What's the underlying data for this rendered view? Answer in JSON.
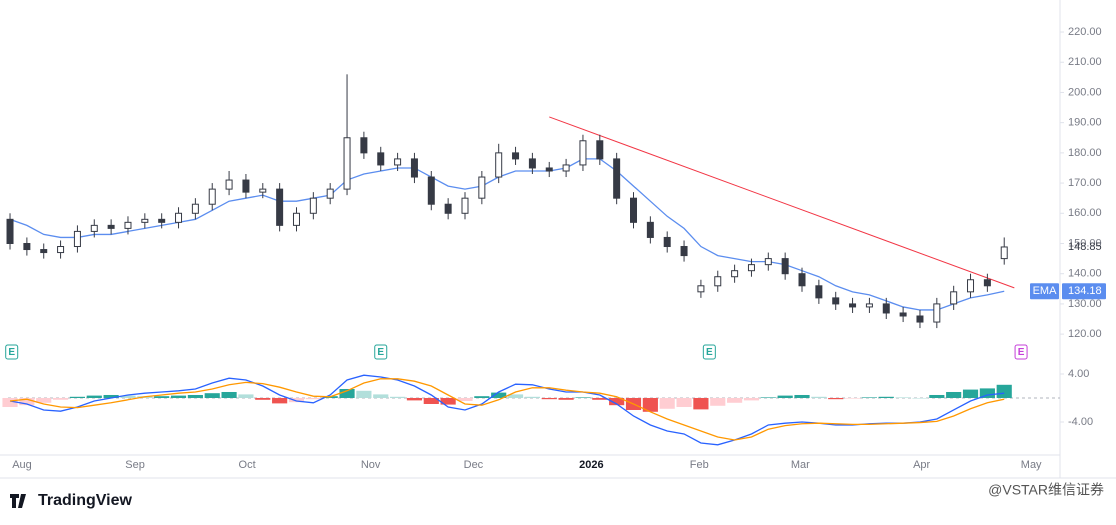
{
  "chart_data": {
    "type": "candlestick",
    "xlim": [
      -0.12,
      62.31
    ],
    "xticks": [
      {
        "value": 0.71,
        "label": "Aug"
      },
      {
        "value": 7.42,
        "label": "Sep"
      },
      {
        "value": 14.07,
        "label": "Oct"
      },
      {
        "value": 21.4,
        "label": "Nov"
      },
      {
        "value": 27.5,
        "label": "Dec"
      },
      {
        "value": 34.5,
        "label": "2026"
      },
      {
        "value": 40.9,
        "label": "Feb"
      },
      {
        "value": 46.9,
        "label": "Mar"
      },
      {
        "value": 54.1,
        "label": "Apr"
      },
      {
        "value": 60.6,
        "label": "May"
      }
    ],
    "ylim": [
      116.4,
      230.6
    ],
    "yticks": [
      {
        "value": 120,
        "label": "120.00"
      },
      {
        "value": 130,
        "label": "130.00"
      },
      {
        "value": 140,
        "label": "140.00"
      },
      {
        "value": 150,
        "label": "150.00"
      },
      {
        "value": 160,
        "label": "160.00"
      },
      {
        "value": 170,
        "label": "170.00"
      },
      {
        "value": 180,
        "label": "180.00"
      },
      {
        "value": 190,
        "label": "190.00"
      },
      {
        "value": 200,
        "label": "200.00"
      },
      {
        "value": 210,
        "label": "210.00"
      },
      {
        "value": 220,
        "label": "220.00"
      }
    ],
    "y2lim": [
      -8.67,
      8
    ],
    "y2ticks": [
      {
        "value": 4,
        "label": "4.00"
      },
      {
        "value": -4,
        "label": "-4.00"
      }
    ],
    "grid": false,
    "up_color": "#ffffff",
    "down_color": "#363a45",
    "open": [
      158,
      150,
      148,
      147,
      149,
      154,
      156,
      155,
      157,
      158,
      157,
      160,
      163,
      168,
      171,
      167,
      168,
      156,
      160,
      165,
      168,
      185,
      180,
      176,
      178,
      172,
      163,
      160,
      165,
      172,
      180,
      178,
      175,
      174,
      176,
      184,
      178,
      165,
      157,
      152,
      149,
      134,
      136,
      139,
      141,
      143,
      145,
      140,
      136,
      132,
      130,
      129,
      130,
      127,
      126,
      124,
      130,
      134,
      138,
      145
    ],
    "high": [
      160,
      152,
      150,
      151,
      156,
      158,
      158,
      159,
      160,
      160,
      162,
      165,
      170,
      174,
      173,
      170,
      170,
      162,
      167,
      170,
      206,
      187,
      182,
      180,
      180,
      174,
      165,
      167,
      174,
      183,
      182,
      180,
      177,
      178,
      186,
      186,
      180,
      167,
      159,
      154,
      151,
      138,
      141,
      143,
      145,
      147,
      147,
      142,
      138,
      134,
      132,
      132,
      132,
      129,
      128,
      132,
      136,
      140,
      140,
      152
    ],
    "low": [
      148,
      146,
      145,
      145,
      147,
      152,
      153,
      153,
      155,
      155,
      155,
      158,
      161,
      166,
      165,
      165,
      154,
      154,
      158,
      163,
      166,
      178,
      174,
      174,
      170,
      161,
      158,
      158,
      163,
      170,
      176,
      173,
      172,
      172,
      174,
      176,
      163,
      155,
      150,
      147,
      144,
      132,
      134,
      137,
      139,
      141,
      138,
      134,
      130,
      128,
      127,
      127,
      125,
      124,
      122,
      122,
      128,
      132,
      134,
      143
    ],
    "close": [
      150,
      148,
      147,
      149,
      154,
      156,
      155,
      157,
      158,
      157,
      160,
      163,
      168,
      171,
      167,
      168,
      156,
      160,
      165,
      168,
      185,
      180,
      176,
      178,
      172,
      163,
      160,
      165,
      172,
      180,
      178,
      175,
      174,
      176,
      184,
      178,
      165,
      157,
      152,
      149,
      146,
      136,
      139,
      141,
      143,
      145,
      140,
      136,
      132,
      130,
      129,
      130,
      127,
      126,
      124,
      130,
      134,
      138,
      136,
      148.85
    ],
    "series": [
      {
        "name": "EMA",
        "color": "#5b8def",
        "axis": "y",
        "values": [
          158,
          156,
          153,
          152,
          152,
          153,
          153,
          154,
          155,
          156,
          157,
          158,
          161,
          164,
          165,
          166,
          164,
          164,
          165,
          166,
          171,
          173,
          174,
          175,
          175,
          172,
          169,
          168,
          169,
          172,
          174,
          174,
          174,
          175,
          178,
          178,
          174,
          169,
          164,
          159,
          155,
          149,
          146,
          145,
          144,
          144,
          143,
          141,
          139,
          136,
          134,
          133,
          131,
          129,
          128,
          128,
          130,
          132,
          133,
          134.18
        ]
      },
      {
        "color": "#2962ff",
        "axis": "y2",
        "values": [
          -0.5,
          -1,
          -2,
          -2.2,
          -1.5,
          -0.5,
          0,
          0.5,
          0.8,
          1,
          1.2,
          1.5,
          2.5,
          3.3,
          3,
          2,
          0.5,
          -0.5,
          -0.8,
          0.5,
          3,
          3.8,
          3.5,
          3,
          2,
          0.5,
          -1.5,
          -2,
          -1,
          1,
          2.3,
          2.2,
          1.5,
          1,
          1,
          0.5,
          -1,
          -3,
          -4.5,
          -5.5,
          -6,
          -7.5,
          -7.8,
          -7,
          -6,
          -4.5,
          -4.2,
          -4,
          -4.2,
          -4.5,
          -4.5,
          -4.3,
          -4.2,
          -4.2,
          -4,
          -3.5,
          -2,
          -0.5,
          0.5,
          0.8
        ]
      },
      {
        "color": "#ff9800",
        "axis": "y2",
        "values": [
          -0.5,
          -0.2,
          -1,
          -1.5,
          -1.6,
          -1.2,
          -0.8,
          -0.3,
          0.2,
          0.5,
          0.8,
          1,
          1.5,
          2.2,
          2.6,
          2.4,
          1.8,
          1,
          0.3,
          0.2,
          1.2,
          2.5,
          3.2,
          3.2,
          2.8,
          2,
          0.5,
          -1,
          -1.2,
          -0.3,
          1,
          1.7,
          1.7,
          1.3,
          1,
          0.8,
          0.2,
          -1,
          -2.3,
          -3.5,
          -4.5,
          -5.5,
          -6.5,
          -7,
          -6.5,
          -5.2,
          -4.6,
          -4.3,
          -4.2,
          -4.3,
          -4.4,
          -4.4,
          -4.3,
          -4.2,
          -4.1,
          -3.9,
          -3,
          -1.8,
          -0.8,
          -0.2
        ]
      }
    ],
    "histogram": {
      "colors": [
        "#26a69a",
        "#b2dfdb",
        "#ffcdd2",
        "#ef5350"
      ],
      "values": [
        -1.5,
        -1.2,
        -0.8,
        -0.3,
        0.2,
        0.4,
        0.5,
        0.4,
        0.3,
        0.3,
        0.4,
        0.5,
        0.8,
        1.0,
        0.6,
        -0.3,
        -0.9,
        -0.7,
        -0.2,
        0.3,
        1.5,
        1.2,
        0.6,
        0.2,
        -0.4,
        -1.0,
        -1.1,
        -0.5,
        0.3,
        0.9,
        0.6,
        0.2,
        -0.2,
        -0.3,
        0.1,
        -0.3,
        -1.2,
        -2.0,
        -2.3,
        -1.8,
        -1.5,
        -1.9,
        -1.3,
        -0.8,
        -0.4,
        0.1,
        0.4,
        0.5,
        0.2,
        -0.2,
        -0.1,
        0.1,
        0.2,
        0.1,
        0.0,
        0.5,
        1.0,
        1.4,
        1.6,
        2.2
      ]
    },
    "trendline": {
      "color": "#f23645",
      "x": [
        32,
        59.6
      ],
      "y": [
        191.9,
        135.3
      ]
    },
    "events": [
      {
        "label": "E",
        "x": 0.1,
        "color": "#26a69a"
      },
      {
        "label": "E",
        "x": 22.0,
        "color": "#26a69a"
      },
      {
        "label": "E",
        "x": 41.5,
        "color": "#26a69a"
      },
      {
        "label": "E",
        "x": 60.0,
        "color": "#c53fd9"
      }
    ],
    "ema_label": "EMA",
    "brand": "TradingView",
    "watermark": "@VSTAR维信证券"
  }
}
